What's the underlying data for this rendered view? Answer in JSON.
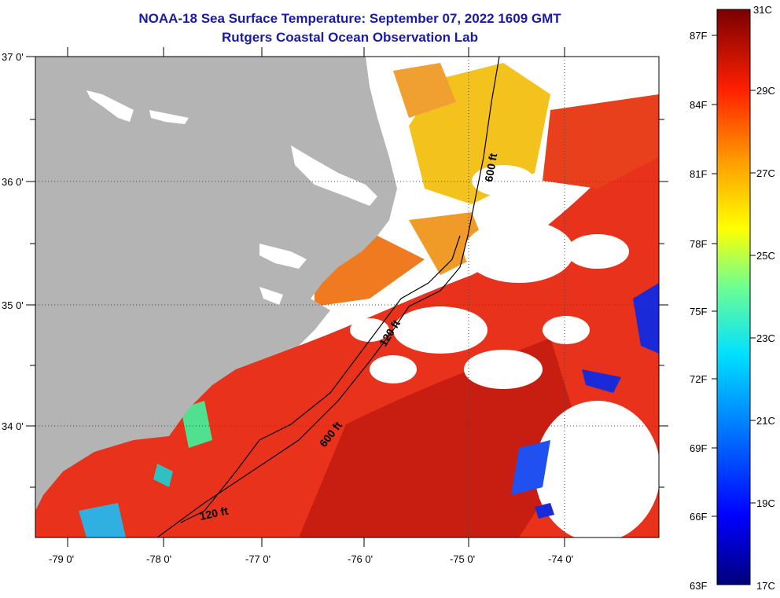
{
  "header": {
    "title": "NOAA-18 Sea Surface Temperature:  September 07, 2022 1609 GMT",
    "subtitle": "Rutgers Coastal Ocean Observation Lab"
  },
  "map": {
    "lat_labels": [
      "37 0'",
      "36 0'",
      "35 0'",
      "34 0'"
    ],
    "lon_labels": [
      "-79 0'",
      "-78 0'",
      "-77 0'",
      "-76 0'",
      "-75 0'",
      "-74 0'"
    ],
    "contour_labels": {
      "north_600": "600 ft",
      "mid_120": "120 ft",
      "south_600": "600 ft",
      "south_120": "120 ft"
    },
    "colors": {
      "land": "#b4b4b4",
      "no_data": "#ffffff",
      "warm": "#e8321c",
      "hot": "#cc1a10",
      "orange": "#f07a20",
      "yellow": "#f4c21c",
      "cool": "#1a2ad8"
    }
  },
  "colorbar": {
    "fahrenheit_labels": [
      "87F",
      "84F",
      "81F",
      "78F",
      "75F",
      "72F",
      "69F",
      "66F",
      "63F"
    ],
    "celsius_labels": [
      "31C",
      "29C",
      "27C",
      "25C",
      "23C",
      "21C",
      "19C",
      "17C"
    ],
    "range_c": [
      17,
      31
    ],
    "range_f": [
      63,
      87
    ]
  }
}
